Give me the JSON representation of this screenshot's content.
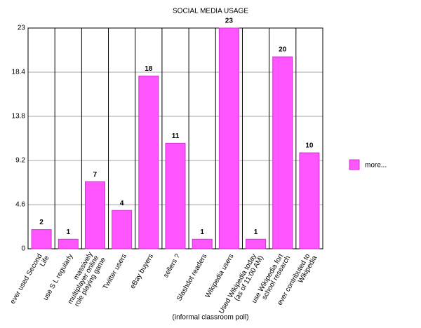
{
  "chart_data": {
    "type": "bar",
    "title": "SOCIAL MEDIA USAGE",
    "x_label": "(informal classroom poll)",
    "categories": [
      "ever used Second Life",
      "use S L regularly",
      "massively multiplayer online role playing game",
      "Twitter users",
      "eBay buyers",
      "sellers ?",
      "Slashdot readers",
      "Wikipedia users",
      "Used Wikipedia today (as of 11:00 AM)",
      "use Wikipedia fort school research",
      "ever contributed to Wikipedia"
    ],
    "series": [
      {
        "name": "more...",
        "color": "#ff55ff",
        "values": [
          2,
          1,
          7,
          4,
          18,
          11,
          1,
          23,
          1,
          20,
          10
        ]
      }
    ],
    "ylim": [
      0,
      23
    ],
    "yticks": [
      0,
      4.6,
      9.2,
      13.8,
      18.4,
      23
    ],
    "grid": true,
    "legend": "right"
  }
}
